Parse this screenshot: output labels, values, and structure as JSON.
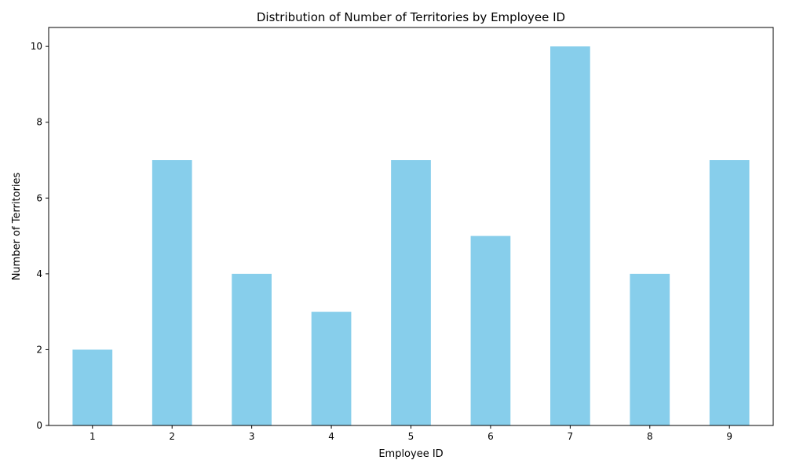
{
  "chart_data": {
    "type": "bar",
    "title": "Distribution of Number of Territories by Employee ID",
    "xlabel": "Employee ID",
    "ylabel": "Number of Territories",
    "categories": [
      "1",
      "2",
      "3",
      "4",
      "5",
      "6",
      "7",
      "8",
      "9"
    ],
    "values": [
      2,
      7,
      4,
      3,
      7,
      5,
      10,
      4,
      7
    ],
    "ylim": [
      0,
      10.5
    ],
    "yticks": [
      0,
      2,
      4,
      6,
      8,
      10
    ],
    "grid": false,
    "legend": "none",
    "bar_color": "#87CEEB"
  }
}
